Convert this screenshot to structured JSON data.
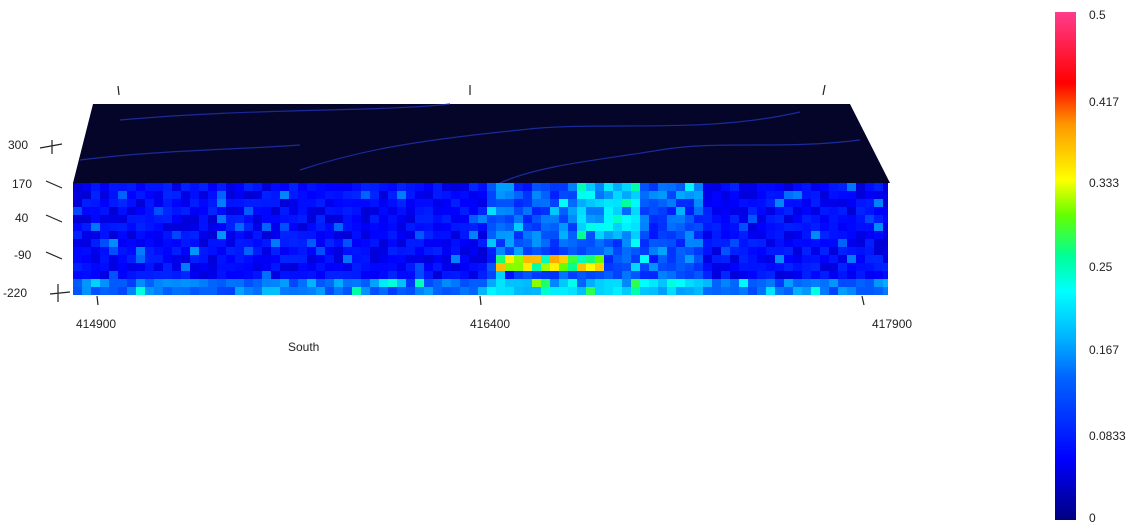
{
  "chart_data": {
    "type": "heatmap",
    "title": "",
    "view": "3D block section",
    "x_axis": {
      "title": "South",
      "ticks": [
        "414900",
        "416400",
        "417900"
      ],
      "range": [
        414900,
        417900
      ]
    },
    "z_axis": {
      "ticks": [
        "300",
        "170",
        "40",
        "-90",
        "-220"
      ],
      "range": [
        -220,
        300
      ]
    },
    "colorbar": {
      "range": [
        0,
        0.5
      ],
      "ticks": [
        "0.5",
        "0.417",
        "0.333",
        "0.25",
        "0.167",
        "0.0833",
        "0"
      ],
      "colormap": [
        "#000080",
        "#0000ff",
        "#00b4ff",
        "#00ffff",
        "#00ff80",
        "#ffff00",
        "#ff8000",
        "#ff0000",
        "#ff3c8c"
      ]
    },
    "top_surface_color": "#05052a",
    "grid": false,
    "legend_position": "right"
  }
}
